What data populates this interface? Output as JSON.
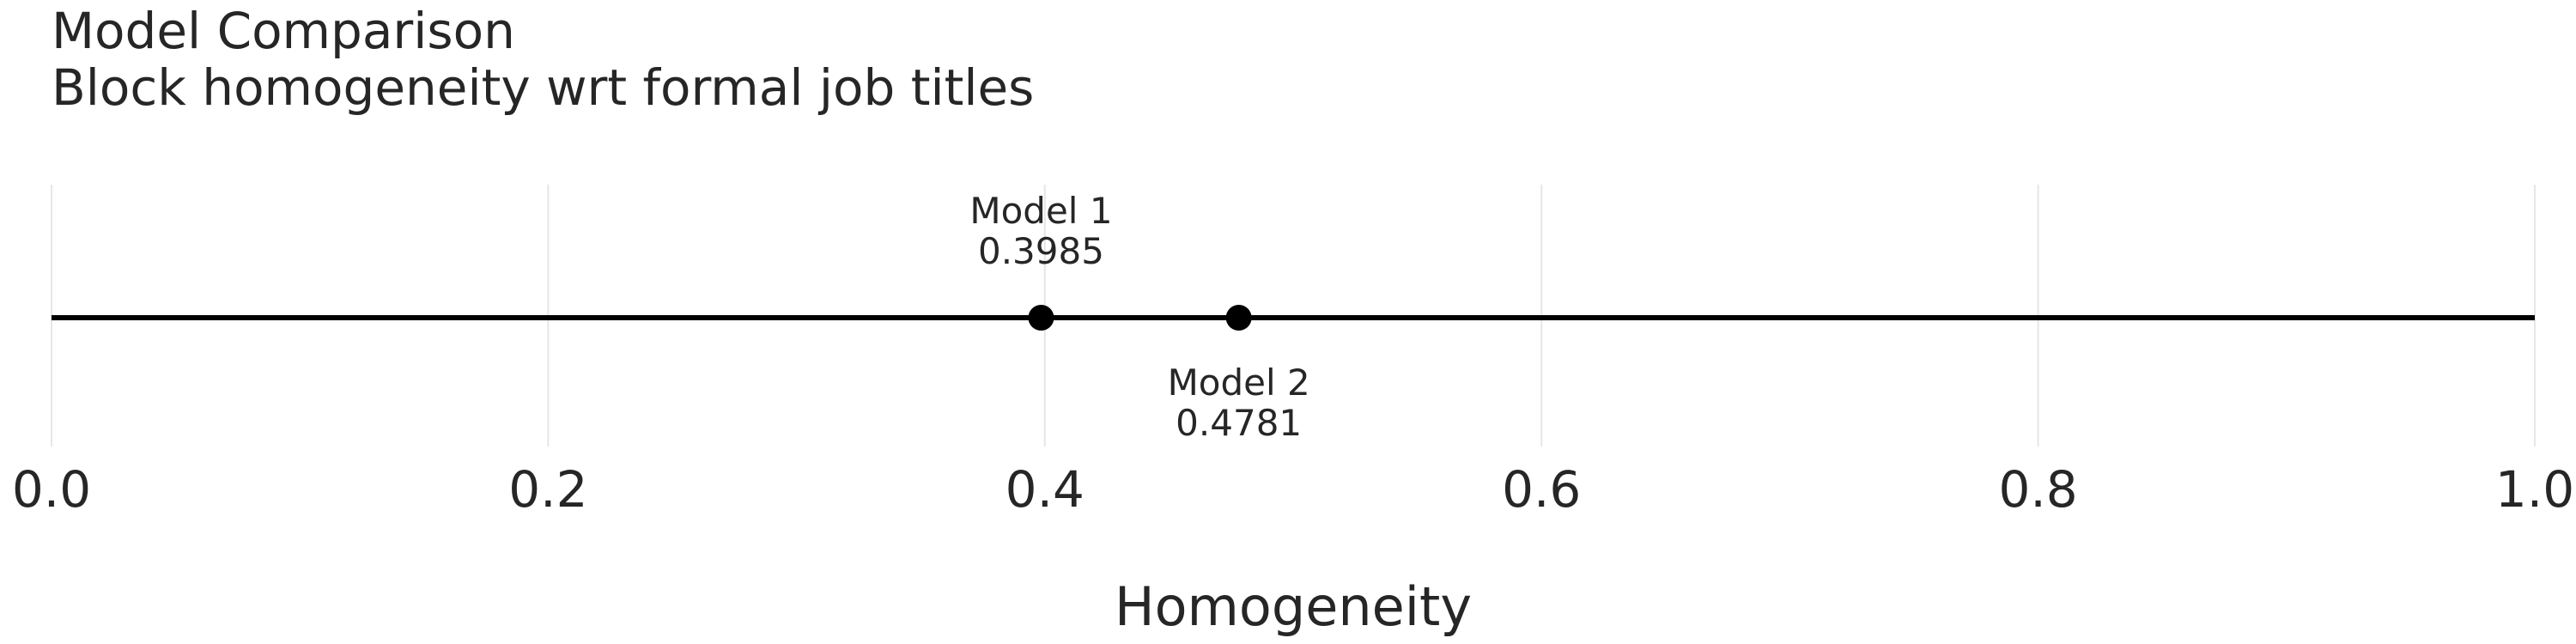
{
  "chart_data": {
    "type": "scatter",
    "title": "Model Comparison",
    "subtitle": "Block homogeneity wrt formal job titles",
    "xlabel": "Homogeneity",
    "ylabel": "",
    "xlim": [
      0.0,
      1.0
    ],
    "x_ticks": [
      "0.0",
      "0.2",
      "0.4",
      "0.6",
      "0.8",
      "1.0"
    ],
    "x_tick_values": [
      0.0,
      0.2,
      0.4,
      0.6,
      0.8,
      1.0
    ],
    "grid": "vertical",
    "points": [
      {
        "name": "Model 1",
        "x": 0.3985,
        "value_label": "0.3985",
        "label_position": "above"
      },
      {
        "name": "Model 2",
        "x": 0.4781,
        "value_label": "0.4781",
        "label_position": "below"
      }
    ],
    "colors": {
      "line": "#000000",
      "points": "#000000",
      "grid": "#e6e6e6",
      "text": "#262626"
    }
  }
}
